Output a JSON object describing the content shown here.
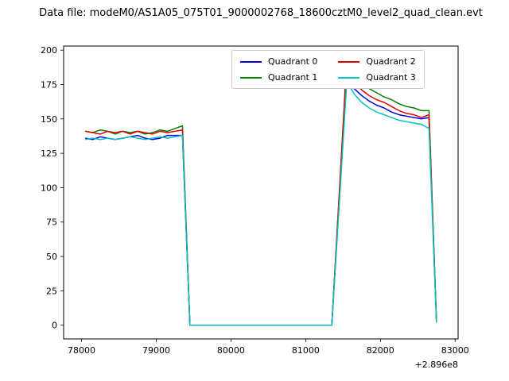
{
  "chart_data": {
    "type": "line",
    "title": "Data file: modeM0/AS1A05_075T01_9000002768_18600cztM0_level2_quad_clean.evt",
    "xlabel": "",
    "ylabel": "",
    "x_axis_offset_label": "+2.896e8",
    "xlim": [
      77760,
      83040
    ],
    "ylim": [
      -10,
      203
    ],
    "x_ticks": [
      78000,
      79000,
      80000,
      81000,
      82000,
      83000
    ],
    "y_ticks": [
      0,
      25,
      50,
      75,
      100,
      125,
      150,
      175,
      200
    ],
    "grid": false,
    "legend_position": "upper center-right inside axes, 2 columns",
    "line_width": 1.5,
    "x": [
      78050,
      78150,
      78250,
      78350,
      78450,
      78550,
      78650,
      78750,
      78850,
      78950,
      79050,
      79150,
      79250,
      79350,
      79450,
      79550,
      79650,
      79750,
      79850,
      79950,
      80050,
      80150,
      80250,
      80350,
      80450,
      80550,
      80650,
      80750,
      80850,
      80950,
      81050,
      81150,
      81250,
      81350,
      81450,
      81550,
      81650,
      81750,
      81850,
      81950,
      82050,
      82150,
      82250,
      82350,
      82450,
      82550,
      82650,
      82750
    ],
    "series": [
      {
        "name": "Quadrant 0",
        "color": "#0000e0",
        "values": [
          136,
          135,
          137,
          136,
          135,
          136,
          137,
          138,
          136,
          135,
          136,
          138,
          138,
          138,
          0,
          0,
          0,
          0,
          0,
          0,
          0,
          0,
          0,
          0,
          0,
          0,
          0,
          0,
          0,
          0,
          0,
          0,
          0,
          0,
          92,
          183,
          172,
          167,
          163,
          160,
          158,
          155,
          153,
          152,
          151,
          150,
          151,
          2
        ]
      },
      {
        "name": "Quadrant 1",
        "color": "#008000",
        "values": [
          141,
          140,
          142,
          141,
          139,
          141,
          140,
          141,
          139,
          140,
          142,
          141,
          143,
          145,
          0,
          0,
          0,
          0,
          0,
          0,
          0,
          0,
          0,
          0,
          0,
          0,
          0,
          0,
          0,
          0,
          0,
          0,
          0,
          0,
          96,
          193,
          181,
          176,
          172,
          169,
          166,
          164,
          161,
          159,
          158,
          156,
          156,
          3
        ]
      },
      {
        "name": "Quadrant 2",
        "color": "#e60000",
        "values": [
          141,
          140,
          139,
          141,
          140,
          141,
          139,
          141,
          140,
          139,
          141,
          140,
          141,
          142,
          0,
          0,
          0,
          0,
          0,
          0,
          0,
          0,
          0,
          0,
          0,
          0,
          0,
          0,
          0,
          0,
          0,
          0,
          0,
          0,
          95,
          190,
          178,
          171,
          167,
          164,
          162,
          159,
          156,
          154,
          153,
          151,
          153,
          2
        ]
      },
      {
        "name": "Quadrant 3",
        "color": "#00c2c2",
        "values": [
          135,
          136,
          135,
          136,
          135,
          136,
          137,
          136,
          135,
          136,
          137,
          136,
          137,
          138,
          0,
          0,
          0,
          0,
          0,
          0,
          0,
          0,
          0,
          0,
          0,
          0,
          0,
          0,
          0,
          0,
          0,
          0,
          0,
          0,
          88,
          177,
          168,
          162,
          158,
          155,
          153,
          151,
          149,
          148,
          147,
          146,
          143,
          2
        ]
      }
    ]
  }
}
